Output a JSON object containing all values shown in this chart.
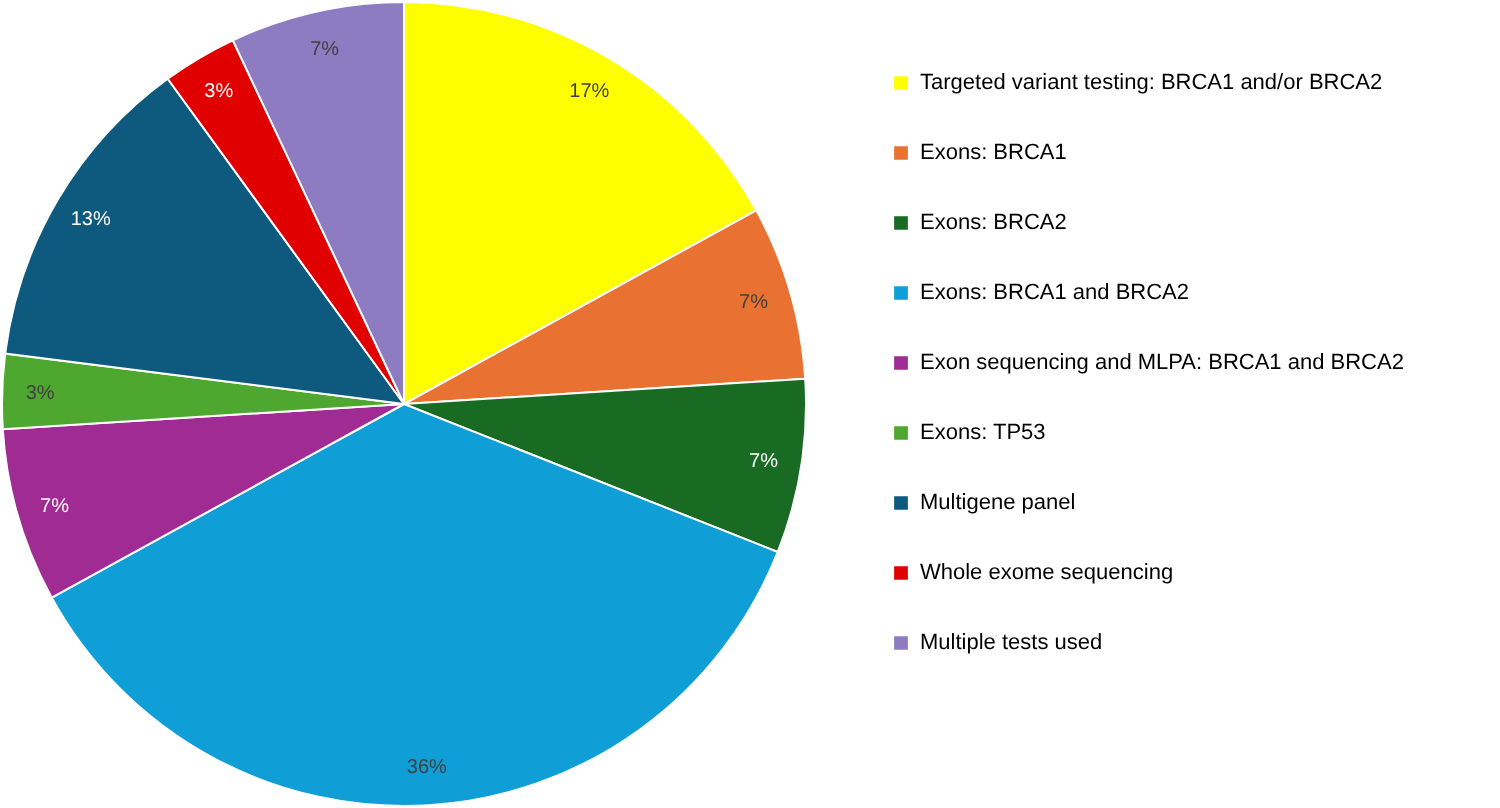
{
  "chart_data": {
    "type": "pie",
    "categories": [
      "Targeted variant testing: BRCA1 and/or BRCA2",
      "Exons: BRCA1",
      "Exons: BRCA2",
      "Exons: BRCA1 and BRCA2",
      "Exon sequencing and MLPA: BRCA1 and BRCA2",
      "Exons: TP53",
      "Multigene panel",
      "Whole exome sequencing",
      "Multiple tests used"
    ],
    "values": [
      17,
      7,
      7,
      36,
      7,
      3,
      13,
      3,
      7
    ],
    "value_labels": [
      "17%",
      "7%",
      "7%",
      "36%",
      "7%",
      "3%",
      "13%",
      "3%",
      "7%"
    ],
    "colors": [
      "#ffff00",
      "#e97132",
      "#196b24",
      "#0f9ed5",
      "#a02b93",
      "#4ea72e",
      "#0e5a7e",
      "#e00000",
      "#8e7cc3"
    ],
    "legend": "right"
  }
}
